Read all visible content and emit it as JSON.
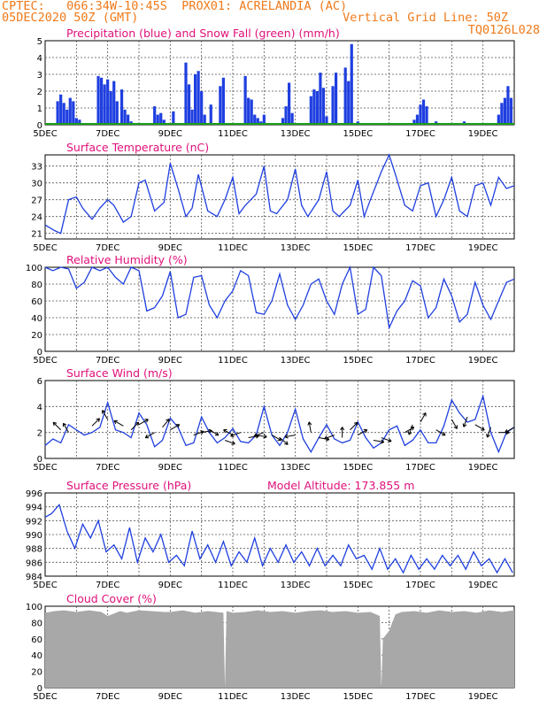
{
  "header": {
    "line1": "CPTEC:   066:34W-10:45S  PROX01: ACRELANDIA (AC)",
    "line2": "05DEC2020 50Z (GMT)",
    "grid_note": "Vertical Grid Line: 50Z",
    "code": "TQ0126L028"
  },
  "colors": {
    "header": "#f07a1a",
    "title": "#e0107a",
    "line": "#1f3fe0",
    "snow": "#18a018",
    "cloud": "#a8a8a8"
  },
  "chart_data": [
    {
      "type": "bar",
      "id": "precip",
      "title": "Precipitation (blue) and Snow Fall (green) (mm/h)",
      "ylim": [
        0,
        5
      ],
      "yticks": [
        0,
        1,
        2,
        3,
        4,
        5
      ],
      "x_start_day": 5,
      "x_end_day": 20,
      "xticks": [
        "5DEC",
        "7DEC",
        "9DEC",
        "11DEC",
        "13DEC",
        "15DEC",
        "17DEC",
        "19DEC"
      ],
      "grid": true,
      "series": [
        {
          "name": "Precipitation",
          "color": "#1f3fe0",
          "x": [
            5.4,
            5.5,
            5.6,
            5.7,
            5.8,
            5.9,
            6.0,
            6.1,
            6.7,
            6.8,
            6.9,
            7.0,
            7.1,
            7.2,
            7.3,
            7.45,
            7.55,
            7.65,
            7.75,
            8.5,
            8.6,
            8.7,
            8.8,
            9.1,
            9.5,
            9.6,
            9.7,
            9.8,
            9.9,
            10.0,
            10.1,
            10.3,
            10.6,
            10.7,
            11.4,
            11.5,
            11.6,
            11.7,
            11.8,
            11.9,
            12.0,
            12.6,
            12.7,
            12.8,
            12.9,
            13.5,
            13.6,
            13.7,
            13.8,
            13.9,
            14.0,
            14.2,
            14.3,
            14.6,
            14.7,
            14.8,
            15.0,
            16.8,
            16.9,
            17.0,
            17.1,
            17.2,
            17.5,
            18.0,
            18.4,
            19.5,
            19.6,
            19.7,
            19.8,
            19.9
          ],
          "values": [
            1.4,
            1.8,
            1.3,
            0.9,
            1.6,
            1.4,
            0.4,
            0.3,
            2.9,
            2.8,
            2.4,
            2.7,
            2.0,
            2.6,
            1.4,
            2.1,
            0.9,
            0.6,
            0.2,
            1.1,
            0.6,
            0.7,
            0.3,
            0.8,
            3.7,
            2.4,
            0.9,
            3.0,
            3.2,
            2.0,
            0.6,
            1.2,
            2.3,
            2.8,
            2.9,
            1.6,
            1.5,
            0.6,
            0.4,
            0.2,
            0.6,
            0.4,
            1.1,
            2.5,
            0.7,
            1.7,
            2.1,
            2.0,
            3.1,
            2.2,
            0.5,
            2.3,
            3.1,
            3.4,
            2.6,
            4.8,
            0.2,
            0.3,
            0.6,
            1.2,
            1.5,
            1.1,
            0.2,
            0.1,
            0.2,
            0.6,
            1.3,
            1.6,
            2.3,
            1.6
          ]
        },
        {
          "name": "Snow Fall",
          "color": "#18a018",
          "x": [
            5.0,
            20.0
          ],
          "values": [
            0,
            0
          ]
        }
      ]
    },
    {
      "type": "line",
      "id": "temp",
      "title": "Surface Temperature (nC)",
      "ylim": [
        20,
        35
      ],
      "yticks": [
        21,
        24,
        27,
        30,
        33
      ],
      "x_start_day": 5,
      "x_end_day": 20,
      "xticks": [
        "5DEC",
        "7DEC",
        "9DEC",
        "11DEC",
        "13DEC",
        "15DEC",
        "17DEC",
        "19DEC"
      ],
      "grid": true,
      "series": [
        {
          "name": "Temperature",
          "color": "#1f3fe0",
          "x": [
            5.0,
            5.3,
            5.5,
            5.75,
            6.0,
            6.2,
            6.5,
            6.75,
            7.0,
            7.2,
            7.5,
            7.75,
            8.0,
            8.2,
            8.5,
            8.8,
            9.0,
            9.25,
            9.5,
            9.7,
            9.9,
            10.2,
            10.5,
            10.75,
            11.0,
            11.2,
            11.4,
            11.75,
            12.0,
            12.2,
            12.4,
            12.75,
            13.0,
            13.2,
            13.4,
            13.75,
            14.0,
            14.2,
            14.4,
            14.75,
            15.0,
            15.2,
            15.4,
            15.75,
            16.0,
            16.2,
            16.5,
            16.75,
            17.0,
            17.25,
            17.5,
            17.75,
            18.0,
            18.25,
            18.5,
            18.75,
            19.0,
            19.25,
            19.5,
            19.75,
            20.0
          ],
          "values": [
            22.5,
            21.5,
            21.0,
            27.0,
            27.5,
            25.5,
            23.5,
            25.5,
            27.0,
            26.0,
            23.0,
            24.0,
            30.0,
            30.5,
            25.0,
            26.5,
            33.5,
            29.0,
            24.0,
            25.5,
            31.5,
            25.0,
            24.0,
            27.0,
            31.0,
            24.5,
            26.0,
            28.0,
            33.0,
            25.0,
            24.5,
            27.0,
            32.5,
            26.0,
            24.0,
            27.0,
            32.0,
            25.0,
            24.0,
            26.0,
            30.5,
            24.0,
            27.0,
            32.0,
            35.0,
            31.5,
            26.0,
            25.0,
            29.5,
            30.0,
            24.0,
            27.0,
            31.0,
            25.0,
            24.0,
            29.5,
            30.0,
            26.0,
            31.0,
            29.0,
            29.5
          ]
        }
      ]
    },
    {
      "type": "line",
      "id": "rh",
      "title": "Relative Humidity (%)",
      "ylim": [
        0,
        100
      ],
      "yticks": [
        0,
        20,
        40,
        60,
        80,
        100
      ],
      "x_start_day": 5,
      "x_end_day": 20,
      "xticks": [
        "5DEC",
        "7DEC",
        "9DEC",
        "11DEC",
        "13DEC",
        "15DEC",
        "17DEC",
        "19DEC"
      ],
      "grid": true,
      "series": [
        {
          "name": "Relative Humidity",
          "color": "#1f3fe0",
          "x": [
            5.0,
            5.25,
            5.5,
            5.75,
            6.0,
            6.25,
            6.5,
            6.75,
            7.0,
            7.25,
            7.5,
            7.75,
            8.0,
            8.25,
            8.5,
            8.75,
            9.0,
            9.25,
            9.5,
            9.75,
            10.0,
            10.25,
            10.5,
            10.75,
            11.0,
            11.25,
            11.5,
            11.75,
            12.0,
            12.25,
            12.5,
            12.75,
            13.0,
            13.25,
            13.5,
            13.75,
            14.0,
            14.25,
            14.5,
            14.75,
            15.0,
            15.25,
            15.5,
            15.75,
            16.0,
            16.25,
            16.5,
            16.75,
            17.0,
            17.25,
            17.5,
            17.75,
            18.0,
            18.25,
            18.5,
            18.75,
            19.0,
            19.25,
            19.5,
            19.75,
            20.0
          ],
          "values": [
            100,
            96,
            100,
            98,
            75,
            82,
            100,
            96,
            100,
            88,
            80,
            100,
            96,
            48,
            52,
            66,
            95,
            40,
            44,
            88,
            90,
            55,
            40,
            60,
            72,
            96,
            90,
            46,
            44,
            60,
            92,
            55,
            38,
            55,
            80,
            86,
            60,
            44,
            80,
            100,
            44,
            50,
            100,
            90,
            28,
            48,
            60,
            84,
            78,
            40,
            52,
            86,
            66,
            35,
            44,
            82,
            55,
            38,
            60,
            82,
            86
          ]
        }
      ]
    },
    {
      "type": "line",
      "id": "wind",
      "title": "Surface Wind (m/s)",
      "ylim": [
        0,
        6
      ],
      "yticks": [
        0,
        2,
        4,
        6
      ],
      "x_start_day": 5,
      "x_end_day": 20,
      "xticks": [
        "5DEC",
        "7DEC",
        "9DEC",
        "11DEC",
        "13DEC",
        "15DEC",
        "17DEC",
        "19DEC"
      ],
      "grid": true,
      "series": [
        {
          "name": "Wind Speed",
          "color": "#1f3fe0",
          "x": [
            5.0,
            5.25,
            5.5,
            5.75,
            6.0,
            6.25,
            6.5,
            6.75,
            7.0,
            7.25,
            7.5,
            7.75,
            8.0,
            8.25,
            8.5,
            8.75,
            9.0,
            9.25,
            9.5,
            9.75,
            10.0,
            10.25,
            10.5,
            10.75,
            11.0,
            11.25,
            11.5,
            11.75,
            12.0,
            12.25,
            12.5,
            12.75,
            13.0,
            13.25,
            13.5,
            13.75,
            14.0,
            14.25,
            14.5,
            14.75,
            15.0,
            15.25,
            15.5,
            15.75,
            16.0,
            16.25,
            16.5,
            16.75,
            17.0,
            17.25,
            17.5,
            17.75,
            18.0,
            18.25,
            18.5,
            18.75,
            19.0,
            19.25,
            19.5,
            19.75,
            20.0
          ],
          "values": [
            1.0,
            1.5,
            1.2,
            2.6,
            2.2,
            1.8,
            2.0,
            2.4,
            4.3,
            2.2,
            2.0,
            1.6,
            3.5,
            2.6,
            0.9,
            1.4,
            3.1,
            2.4,
            1.0,
            1.2,
            3.2,
            2.0,
            1.2,
            1.6,
            2.3,
            1.3,
            1.2,
            1.8,
            4.0,
            1.8,
            1.0,
            2.0,
            3.8,
            1.5,
            0.5,
            1.6,
            2.6,
            1.5,
            1.2,
            1.4,
            2.8,
            1.6,
            0.8,
            1.2,
            2.2,
            2.5,
            1.0,
            1.4,
            2.2,
            1.2,
            1.2,
            2.5,
            4.5,
            3.5,
            2.8,
            3.0,
            4.8,
            2.0,
            0.5,
            2.0,
            2.4
          ]
        }
      ],
      "wind_arrows": {
        "x": [
          5.5,
          5.75,
          6.5,
          7.0,
          7.5,
          7.75,
          8.0,
          8.5,
          8.75,
          9.0,
          9.75,
          10.0,
          10.25,
          10.75,
          11.0,
          11.25,
          11.5,
          11.75,
          12.0,
          12.25,
          12.5,
          13.0,
          13.5,
          13.75,
          14.25,
          14.5,
          14.75,
          15.0,
          15.5,
          15.75,
          16.5,
          16.75,
          17.0,
          17.5,
          18.0,
          18.5,
          18.75,
          19.25,
          19.5,
          20.0
        ],
        "speed": [
          2.2,
          2.0,
          2.5,
          3.0,
          2.5,
          2.2,
          2.6,
          2.0,
          2.4,
          2.2,
          1.8,
          2.0,
          2.2,
          1.4,
          1.8,
          2.0,
          1.6,
          1.8,
          2.0,
          1.8,
          1.6,
          1.8,
          2.0,
          1.6,
          1.8,
          1.6,
          2.2,
          1.8,
          1.4,
          1.6,
          2.0,
          2.6,
          2.8,
          2.2,
          3.0,
          3.2,
          2.6,
          2.4,
          2.0,
          2.4
        ],
        "dir_deg": [
          315,
          330,
          45,
          330,
          300,
          45,
          60,
          240,
          40,
          60,
          70,
          80,
          120,
          110,
          300,
          250,
          80,
          100,
          250,
          120,
          130,
          260,
          350,
          100,
          250,
          360,
          45,
          60,
          100,
          110,
          60,
          200,
          30,
          120,
          150,
          200,
          120,
          200,
          90,
          240
        ]
      }
    },
    {
      "type": "line",
      "id": "pressure",
      "title": "Surface Pressure (hPa)",
      "annotation": "Model Altitude: 173.855 m",
      "ylim": [
        984,
        996
      ],
      "yticks": [
        984,
        986,
        988,
        990,
        992,
        994,
        996
      ],
      "x_start_day": 5,
      "x_end_day": 20,
      "xticks": [
        "5DEC",
        "7DEC",
        "9DEC",
        "11DEC",
        "13DEC",
        "15DEC",
        "17DEC",
        "19DEC"
      ],
      "grid": true,
      "series": [
        {
          "name": "Pressure",
          "color": "#1f3fe0",
          "x": [
            5.0,
            5.2,
            5.45,
            5.7,
            5.95,
            6.2,
            6.45,
            6.7,
            6.95,
            7.2,
            7.45,
            7.7,
            7.95,
            8.2,
            8.45,
            8.7,
            8.95,
            9.2,
            9.45,
            9.7,
            9.95,
            10.2,
            10.45,
            10.7,
            10.95,
            11.2,
            11.45,
            11.7,
            11.95,
            12.2,
            12.45,
            12.7,
            12.95,
            13.2,
            13.45,
            13.7,
            13.95,
            14.2,
            14.45,
            14.7,
            14.95,
            15.2,
            15.45,
            15.7,
            15.95,
            16.2,
            16.45,
            16.7,
            16.95,
            17.2,
            17.45,
            17.7,
            17.95,
            18.2,
            18.45,
            18.7,
            18.95,
            19.2,
            19.45,
            19.7,
            19.95
          ],
          "values": [
            992.5,
            993.0,
            994.3,
            990.5,
            988.0,
            991.5,
            989.5,
            992.0,
            987.5,
            988.5,
            986.5,
            991.0,
            986.0,
            989.5,
            987.5,
            990.0,
            986.0,
            987.0,
            985.5,
            990.5,
            986.5,
            988.5,
            986.0,
            989.0,
            985.5,
            987.5,
            986.0,
            989.5,
            985.5,
            988.0,
            986.0,
            988.5,
            986.0,
            987.5,
            985.5,
            988.0,
            985.5,
            987.0,
            985.5,
            988.5,
            986.5,
            987.0,
            985.0,
            988.0,
            985.0,
            986.5,
            984.5,
            987.0,
            985.0,
            986.5,
            985.0,
            987.0,
            985.5,
            987.0,
            985.0,
            987.5,
            985.5,
            986.5,
            984.5,
            986.5,
            984.5
          ]
        }
      ]
    },
    {
      "type": "area",
      "id": "cloud",
      "title": "Cloud Cover (%)",
      "ylim": [
        0,
        100
      ],
      "yticks": [
        0,
        20,
        40,
        60,
        80,
        100
      ],
      "x_start_day": 5,
      "x_end_day": 20,
      "xticks": [
        "5DEC",
        "7DEC",
        "9DEC",
        "11DEC",
        "13DEC",
        "15DEC",
        "17DEC",
        "19DEC"
      ],
      "grid": true,
      "series": [
        {
          "name": "Cloud Cover",
          "color": "#a8a8a8",
          "x": [
            5.0,
            5.3,
            5.6,
            6.0,
            6.4,
            6.8,
            7.0,
            7.4,
            7.6,
            8.0,
            8.4,
            8.8,
            9.0,
            9.4,
            9.8,
            10.2,
            10.7,
            10.75,
            10.8,
            11.0,
            11.4,
            11.8,
            12.2,
            12.6,
            13.0,
            13.4,
            13.8,
            14.2,
            14.6,
            15.0,
            15.4,
            15.7,
            15.75,
            15.8,
            16.0,
            16.2,
            16.4,
            16.8,
            17.2,
            17.6,
            18.0,
            18.4,
            18.8,
            19.2,
            19.6,
            20.0
          ],
          "values": [
            92,
            94,
            95,
            93,
            95,
            93,
            88,
            94,
            92,
            95,
            94,
            93,
            93,
            95,
            92,
            94,
            92,
            0,
            94,
            92,
            93,
            95,
            93,
            94,
            92,
            94,
            95,
            93,
            94,
            92,
            93,
            88,
            0,
            60,
            70,
            90,
            93,
            94,
            92,
            95,
            93,
            94,
            92,
            95,
            93,
            95
          ]
        }
      ]
    }
  ]
}
